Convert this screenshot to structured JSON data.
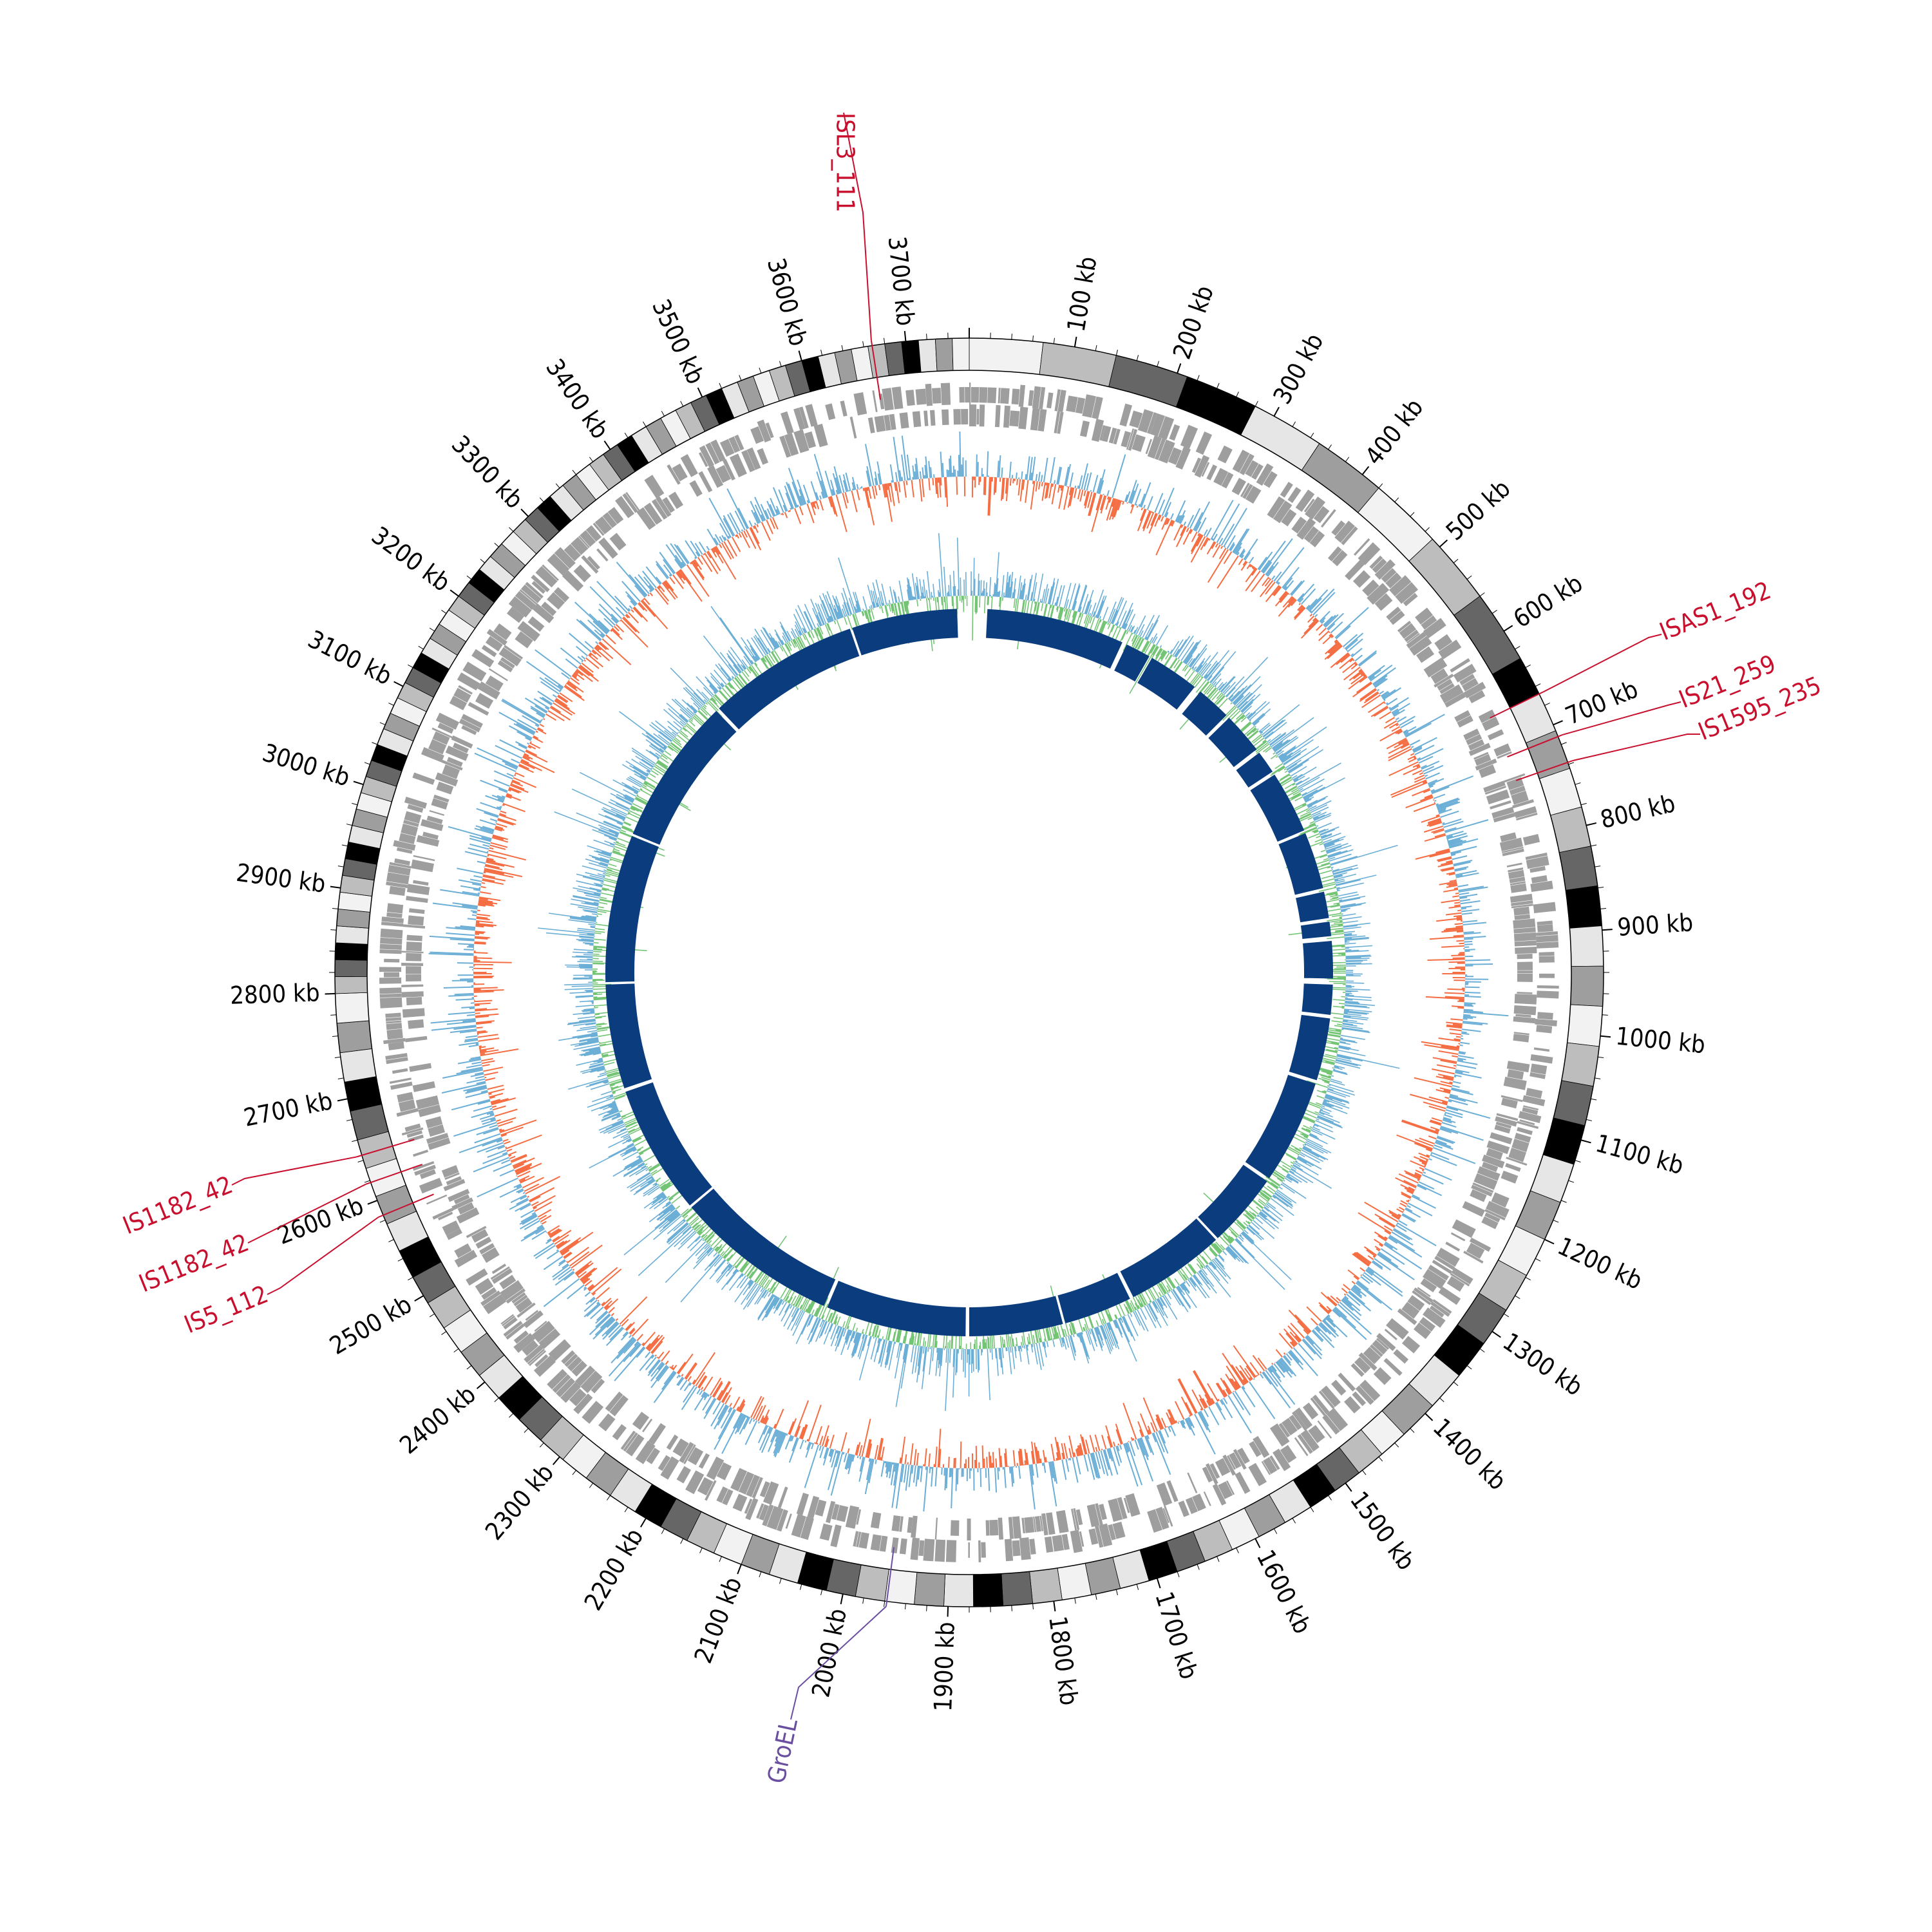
{
  "genome": {
    "length_kb": 3760,
    "tick_unit": "kb",
    "major_ticks_kb": [
      100,
      200,
      300,
      400,
      500,
      600,
      700,
      800,
      900,
      1000,
      1100,
      1200,
      1300,
      1400,
      1500,
      1600,
      1700,
      1800,
      1900,
      2000,
      2100,
      2200,
      2300,
      2400,
      2500,
      2600,
      2700,
      2800,
      2900,
      3000,
      3100,
      3200,
      3300,
      3400,
      3500,
      3600,
      3700
    ],
    "major_tick_labels": [
      "100 kb",
      "200 kb",
      "300 kb",
      "400 kb",
      "500 kb",
      "600 kb",
      "700 kb",
      "800 kb",
      "900 kb",
      "1000 kb",
      "1100 kb",
      "1200 kb",
      "1300 kb",
      "1400 kb",
      "1500 kb",
      "1600 kb",
      "1700 kb",
      "1800 kb",
      "1900 kb",
      "2000 kb",
      "2100 kb",
      "2200 kb",
      "2300 kb",
      "2400 kb",
      "2500 kb",
      "2600 kb",
      "2700 kb",
      "2800 kb",
      "2900 kb",
      "3000 kb",
      "3100 kb",
      "3200 kb",
      "3300 kb",
      "3400 kb",
      "3500 kb",
      "3600 kb",
      "3700 kb"
    ],
    "minor_tick_step_kb": 20
  },
  "features": [
    {
      "label": "ISL3_111",
      "position_kb": 3668,
      "color": "#c8102e"
    },
    {
      "label": "ISAS1_192",
      "position_kb": 668,
      "color": "#c8102e"
    },
    {
      "label": "IS21_259",
      "position_kb": 712,
      "color": "#c8102e"
    },
    {
      "label": "IS1595_235",
      "position_kb": 738,
      "color": "#c8102e"
    },
    {
      "label": "IS1182_42",
      "position_kb": 2645,
      "color": "#c8102e"
    },
    {
      "label": "IS1182_42",
      "position_kb": 2618,
      "color": "#c8102e"
    },
    {
      "label": "IS5_112",
      "position_kb": 2585,
      "color": "#c8102e"
    },
    {
      "label": "GroEL",
      "position_kb": 1958,
      "color": "#6a4ea0"
    }
  ],
  "tracks": {
    "ideogram_shades": [
      "#f2f2f2",
      "#bdbdbd",
      "#666666",
      "#000000",
      "#e6e6e6",
      "#9e9e9e"
    ],
    "gene_color": "#9e9e9e",
    "gc_skew_positive_color": "#6baed6",
    "gc_skew_negative_color": "#f46d43",
    "gc_content_positive_color": "#6baed6",
    "gc_content_negative_color": "#74c476",
    "alignment_color": "#0b3d7e"
  }
}
